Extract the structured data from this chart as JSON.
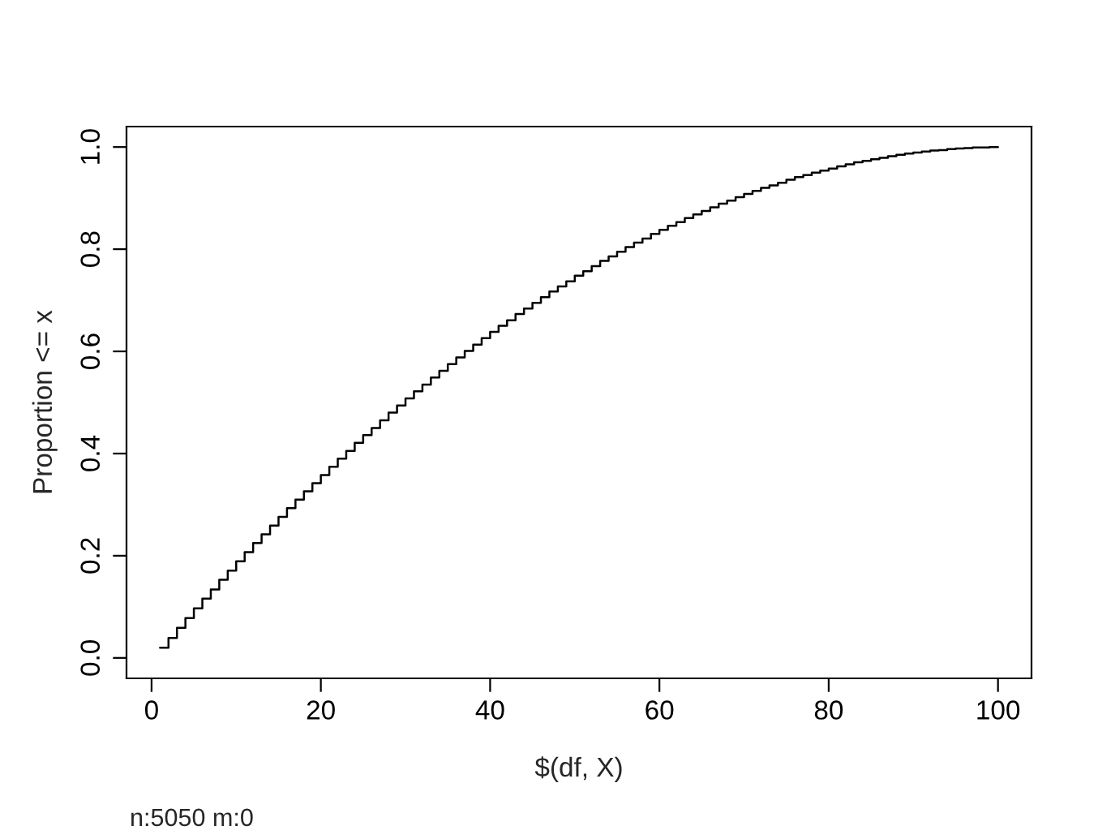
{
  "chart_data": {
    "type": "step",
    "xlabel": "$(df, X)",
    "ylabel": "Proportion <= x",
    "annotations": [
      "n:5050 m:0"
    ],
    "x": [
      1,
      2,
      3,
      4,
      5,
      6,
      7,
      8,
      9,
      10,
      11,
      12,
      13,
      14,
      15,
      16,
      17,
      18,
      19,
      20,
      21,
      22,
      23,
      24,
      25,
      26,
      27,
      28,
      29,
      30,
      31,
      32,
      33,
      34,
      35,
      36,
      37,
      38,
      39,
      40,
      41,
      42,
      43,
      44,
      45,
      46,
      47,
      48,
      49,
      50,
      51,
      52,
      53,
      54,
      55,
      56,
      57,
      58,
      59,
      60,
      61,
      62,
      63,
      64,
      65,
      66,
      67,
      68,
      69,
      70,
      71,
      72,
      73,
      74,
      75,
      76,
      77,
      78,
      79,
      80,
      81,
      82,
      83,
      84,
      85,
      86,
      87,
      88,
      89,
      90,
      91,
      92,
      93,
      94,
      95,
      96,
      97,
      98,
      99,
      100
    ],
    "series": [
      {
        "color": "#000000",
        "values": [
          0.02,
          0.039,
          0.059,
          0.078,
          0.097,
          0.116,
          0.134,
          0.153,
          0.171,
          0.189,
          0.207,
          0.225,
          0.242,
          0.259,
          0.276,
          0.293,
          0.31,
          0.326,
          0.342,
          0.358,
          0.374,
          0.39,
          0.405,
          0.421,
          0.436,
          0.45,
          0.465,
          0.48,
          0.494,
          0.508,
          0.522,
          0.535,
          0.549,
          0.562,
          0.575,
          0.588,
          0.601,
          0.613,
          0.626,
          0.638,
          0.65,
          0.661,
          0.673,
          0.684,
          0.695,
          0.706,
          0.717,
          0.727,
          0.737,
          0.748,
          0.757,
          0.767,
          0.777,
          0.786,
          0.795,
          0.804,
          0.813,
          0.821,
          0.83,
          0.838,
          0.846,
          0.853,
          0.861,
          0.868,
          0.875,
          0.882,
          0.889,
          0.895,
          0.902,
          0.908,
          0.914,
          0.92,
          0.925,
          0.93,
          0.936,
          0.941,
          0.945,
          0.95,
          0.954,
          0.958,
          0.962,
          0.966,
          0.97,
          0.973,
          0.976,
          0.979,
          0.982,
          0.985,
          0.987,
          0.989,
          0.991,
          0.993,
          0.994,
          0.996,
          0.997,
          0.998,
          0.999,
          0.999,
          1.0,
          1.0
        ]
      }
    ],
    "xlim": [
      -2.96,
      103.96
    ],
    "ylim": [
      -0.04,
      1.04
    ],
    "xticks": [
      0,
      20,
      40,
      60,
      80,
      100
    ],
    "yticks": [
      {
        "value": 0,
        "label": "0.0"
      },
      {
        "value": 0.2,
        "label": "0.2"
      },
      {
        "value": 0.4,
        "label": "0.4"
      },
      {
        "value": 0.6,
        "label": "0.6"
      },
      {
        "value": 0.8,
        "label": "0.8"
      },
      {
        "value": 1,
        "label": "1.0"
      }
    ],
    "grid": false,
    "legend": false
  }
}
